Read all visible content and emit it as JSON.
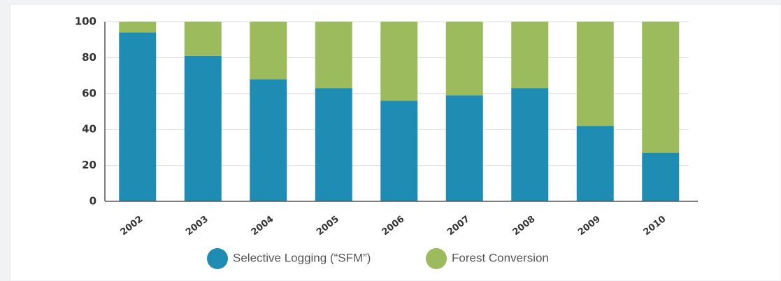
{
  "chart_data": {
    "type": "bar",
    "stacked": true,
    "categories": [
      "2002",
      "2003",
      "2004",
      "2005",
      "2006",
      "2007",
      "2008",
      "2009",
      "2010"
    ],
    "series": [
      {
        "name": "Selective Logging (“SFM”)",
        "color": "#1f8db3",
        "values": [
          94,
          81,
          68,
          63,
          56,
          59,
          63,
          42,
          27
        ]
      },
      {
        "name": "Forest Conversion",
        "color": "#9bbb5c",
        "values": [
          6,
          19,
          32,
          37,
          44,
          41,
          37,
          58,
          73
        ]
      }
    ],
    "ylim": [
      0,
      100
    ],
    "yticks": [
      0,
      20,
      40,
      60,
      80,
      100
    ],
    "grid": true,
    "legend": "bottom"
  }
}
